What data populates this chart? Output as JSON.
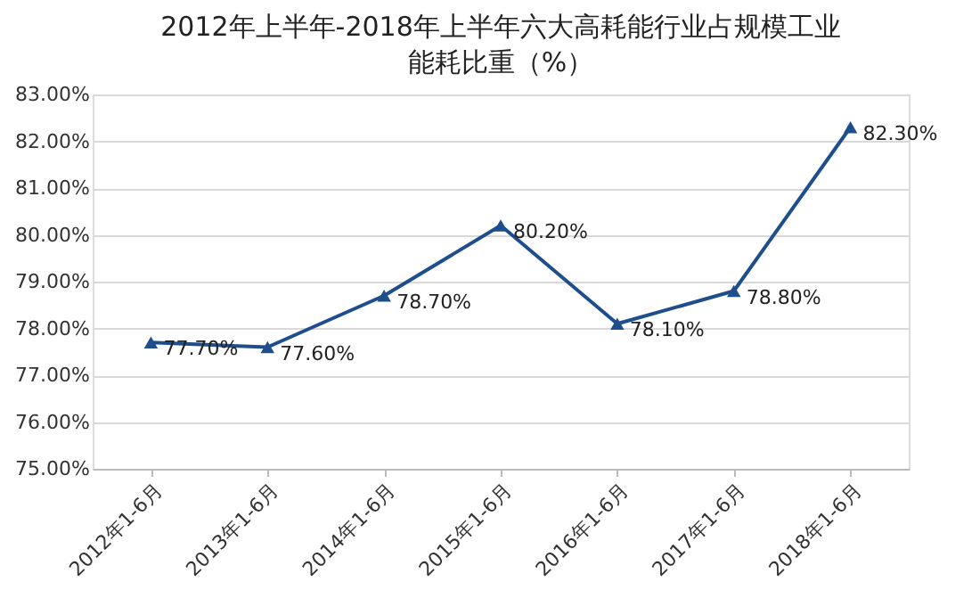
{
  "chart_data": {
    "type": "line",
    "title": "2012年上半年-2018年上半年六大高耗能行业占规模工业能耗比重（%）",
    "categories": [
      "2012年1-6月",
      "2013年1-6月",
      "2014年1-6月",
      "2015年1-6月",
      "2016年1-6月",
      "2017年1-6月",
      "2018年1-6月"
    ],
    "series": [
      {
        "color": "#1f4e8c",
        "values": [
          77.7,
          77.6,
          78.7,
          80.2,
          78.1,
          78.8,
          82.3
        ],
        "value_labels": [
          "77.70%",
          "77.60%",
          "78.70%",
          "80.20%",
          "78.10%",
          "78.80%",
          "82.30%"
        ]
      }
    ],
    "ylim": [
      75,
      83
    ],
    "yticks": [
      {
        "value": 75,
        "label": "75.00%"
      },
      {
        "value": 76,
        "label": "76.00%"
      },
      {
        "value": 77,
        "label": "77.00%"
      },
      {
        "value": 78,
        "label": "78.00%"
      },
      {
        "value": 79,
        "label": "79.00%"
      },
      {
        "value": 80,
        "label": "80.00%"
      },
      {
        "value": 81,
        "label": "81.00%"
      },
      {
        "value": 82,
        "label": "82.00%"
      },
      {
        "value": 83,
        "label": "83.00%"
      }
    ],
    "grid": "y",
    "marker": "triangle",
    "line_style": "solid"
  }
}
